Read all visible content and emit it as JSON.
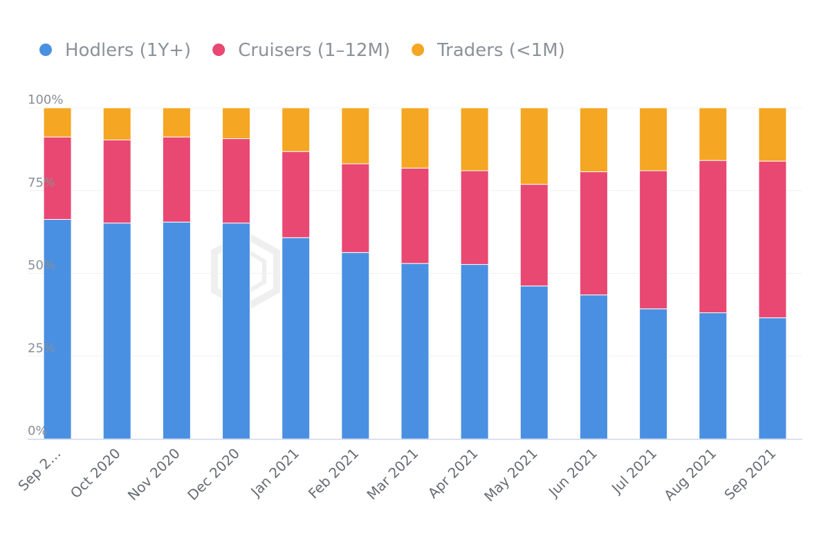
{
  "chart_data": {
    "type": "bar",
    "stacked": true,
    "percent": true,
    "categories": [
      "Sep 2…",
      "Oct 2020",
      "Nov 2020",
      "Dec 2020",
      "Jan 2021",
      "Feb 2021",
      "Mar 2021",
      "Apr 2021",
      "May 2021",
      "Jun 2021",
      "Jul 2021",
      "Aug 2021",
      "Sep 2021"
    ],
    "series": [
      {
        "name": "Hodlers (1Y+)",
        "color": "#4a90e2",
        "values": [
          66.3,
          65.2,
          65.5,
          65.2,
          60.8,
          56.3,
          53.0,
          52.7,
          46.2,
          43.5,
          39.3,
          38.1,
          36.6
        ]
      },
      {
        "name": "Cruisers (1–12M)",
        "color": "#e94872",
        "values": [
          24.9,
          25.1,
          25.7,
          25.5,
          26.0,
          26.8,
          28.8,
          28.3,
          30.7,
          37.2,
          41.7,
          46.0,
          47.3
        ]
      },
      {
        "name": "Traders (<1M)",
        "color": "#f5a623",
        "values": [
          8.8,
          9.7,
          8.8,
          9.3,
          13.2,
          16.9,
          18.2,
          19.0,
          23.1,
          19.3,
          19.0,
          15.9,
          16.1
        ]
      }
    ],
    "y_ticks": [
      "0%",
      "25%",
      "50%",
      "75%",
      "100%"
    ],
    "ylim": [
      0,
      100
    ],
    "grid": true,
    "legend_position": "top-left"
  }
}
